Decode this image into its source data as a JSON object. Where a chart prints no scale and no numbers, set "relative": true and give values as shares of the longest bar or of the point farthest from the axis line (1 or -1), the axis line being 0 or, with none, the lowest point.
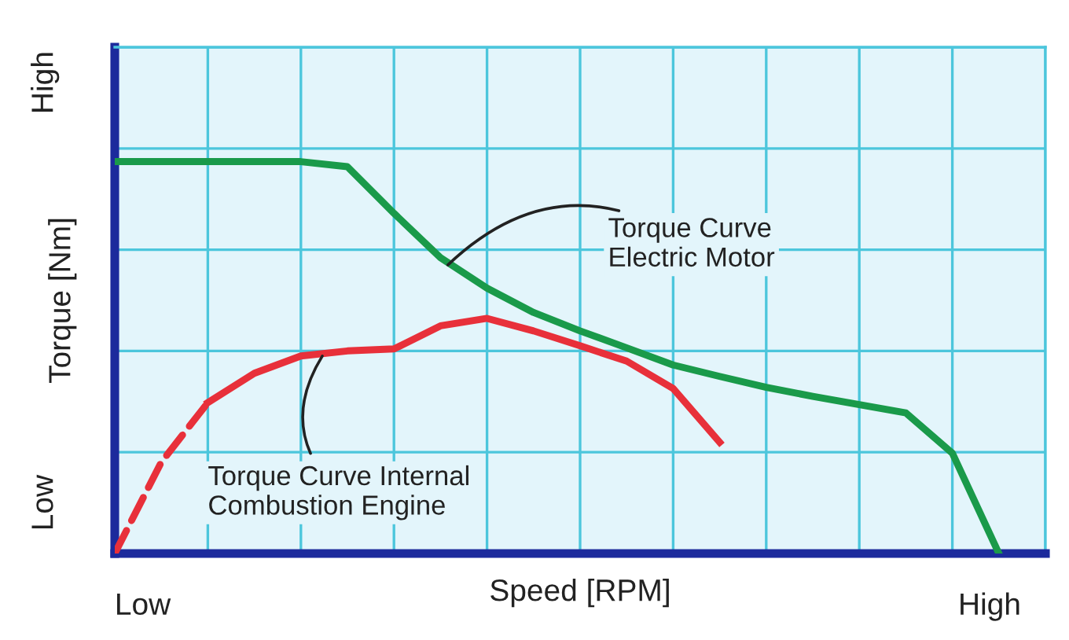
{
  "chart_data": {
    "type": "line",
    "xlabel": "Speed [RPM]",
    "ylabel": "Torque [Nm]",
    "relative": true,
    "grid": true,
    "legend": false,
    "marker": "none",
    "categories": [
      null,
      null,
      null,
      null,
      null,
      null,
      null,
      null,
      null,
      null,
      null,
      null,
      null,
      null,
      null,
      null,
      null,
      null,
      null,
      null,
      null
    ],
    "series": [
      {
        "color": "#1a9a4a",
        "line_style": "solid",
        "values": [
          1,
          1,
          1,
          1,
          1,
          0.987,
          0.868,
          0.755,
          0.677,
          0.615,
          0.568,
          0.525,
          0.481,
          0.452,
          0.424,
          0.401,
          0.38,
          0.359,
          0.256,
          0,
          null
        ]
      },
      {
        "color": "#e8303a",
        "line_style": "solid",
        "values": [
          null,
          null,
          0.385,
          0.46,
          0.504,
          0.517,
          0.522,
          0.581,
          0.6,
          0.568,
          0.53,
          0.491,
          0.421,
          0.284,
          null,
          null,
          null,
          null,
          null,
          null,
          null
        ]
      },
      {
        "color": "#e8303a",
        "line_style": "dashed",
        "values": [
          0,
          0.233,
          0.385,
          null,
          null,
          null,
          null,
          null,
          null,
          null,
          null,
          null,
          null,
          null,
          null,
          null,
          null,
          null,
          null,
          null,
          null
        ]
      }
    ],
    "annotations": [
      "Torque Curve\nElectric Motor",
      "Torque Curve Internal\nCombustion Engine",
      "High",
      "Low",
      "Low",
      "High"
    ]
  }
}
